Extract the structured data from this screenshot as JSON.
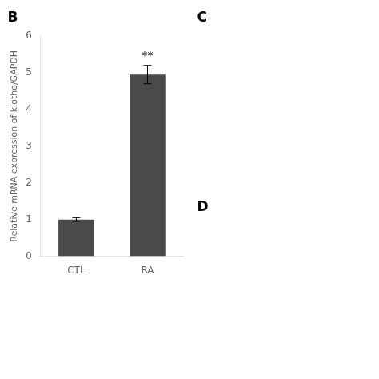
{
  "chart_data": {
    "type": "bar",
    "categories": [
      "CTL",
      "RA"
    ],
    "values": [
      1.0,
      4.95
    ],
    "errors": [
      0.05,
      0.25
    ],
    "color": "#4a4a4a",
    "ylabel": "Relative mRNA expression of klotho/GAPDH",
    "ylim": [
      0,
      6
    ],
    "yticks": [
      0,
      1,
      2,
      3,
      4,
      5,
      6
    ],
    "grid": false,
    "annotations": [
      {
        "text": "**",
        "category": "RA"
      },
      {
        "text": "B"
      },
      {
        "text": "C"
      },
      {
        "text": "D"
      }
    ]
  }
}
